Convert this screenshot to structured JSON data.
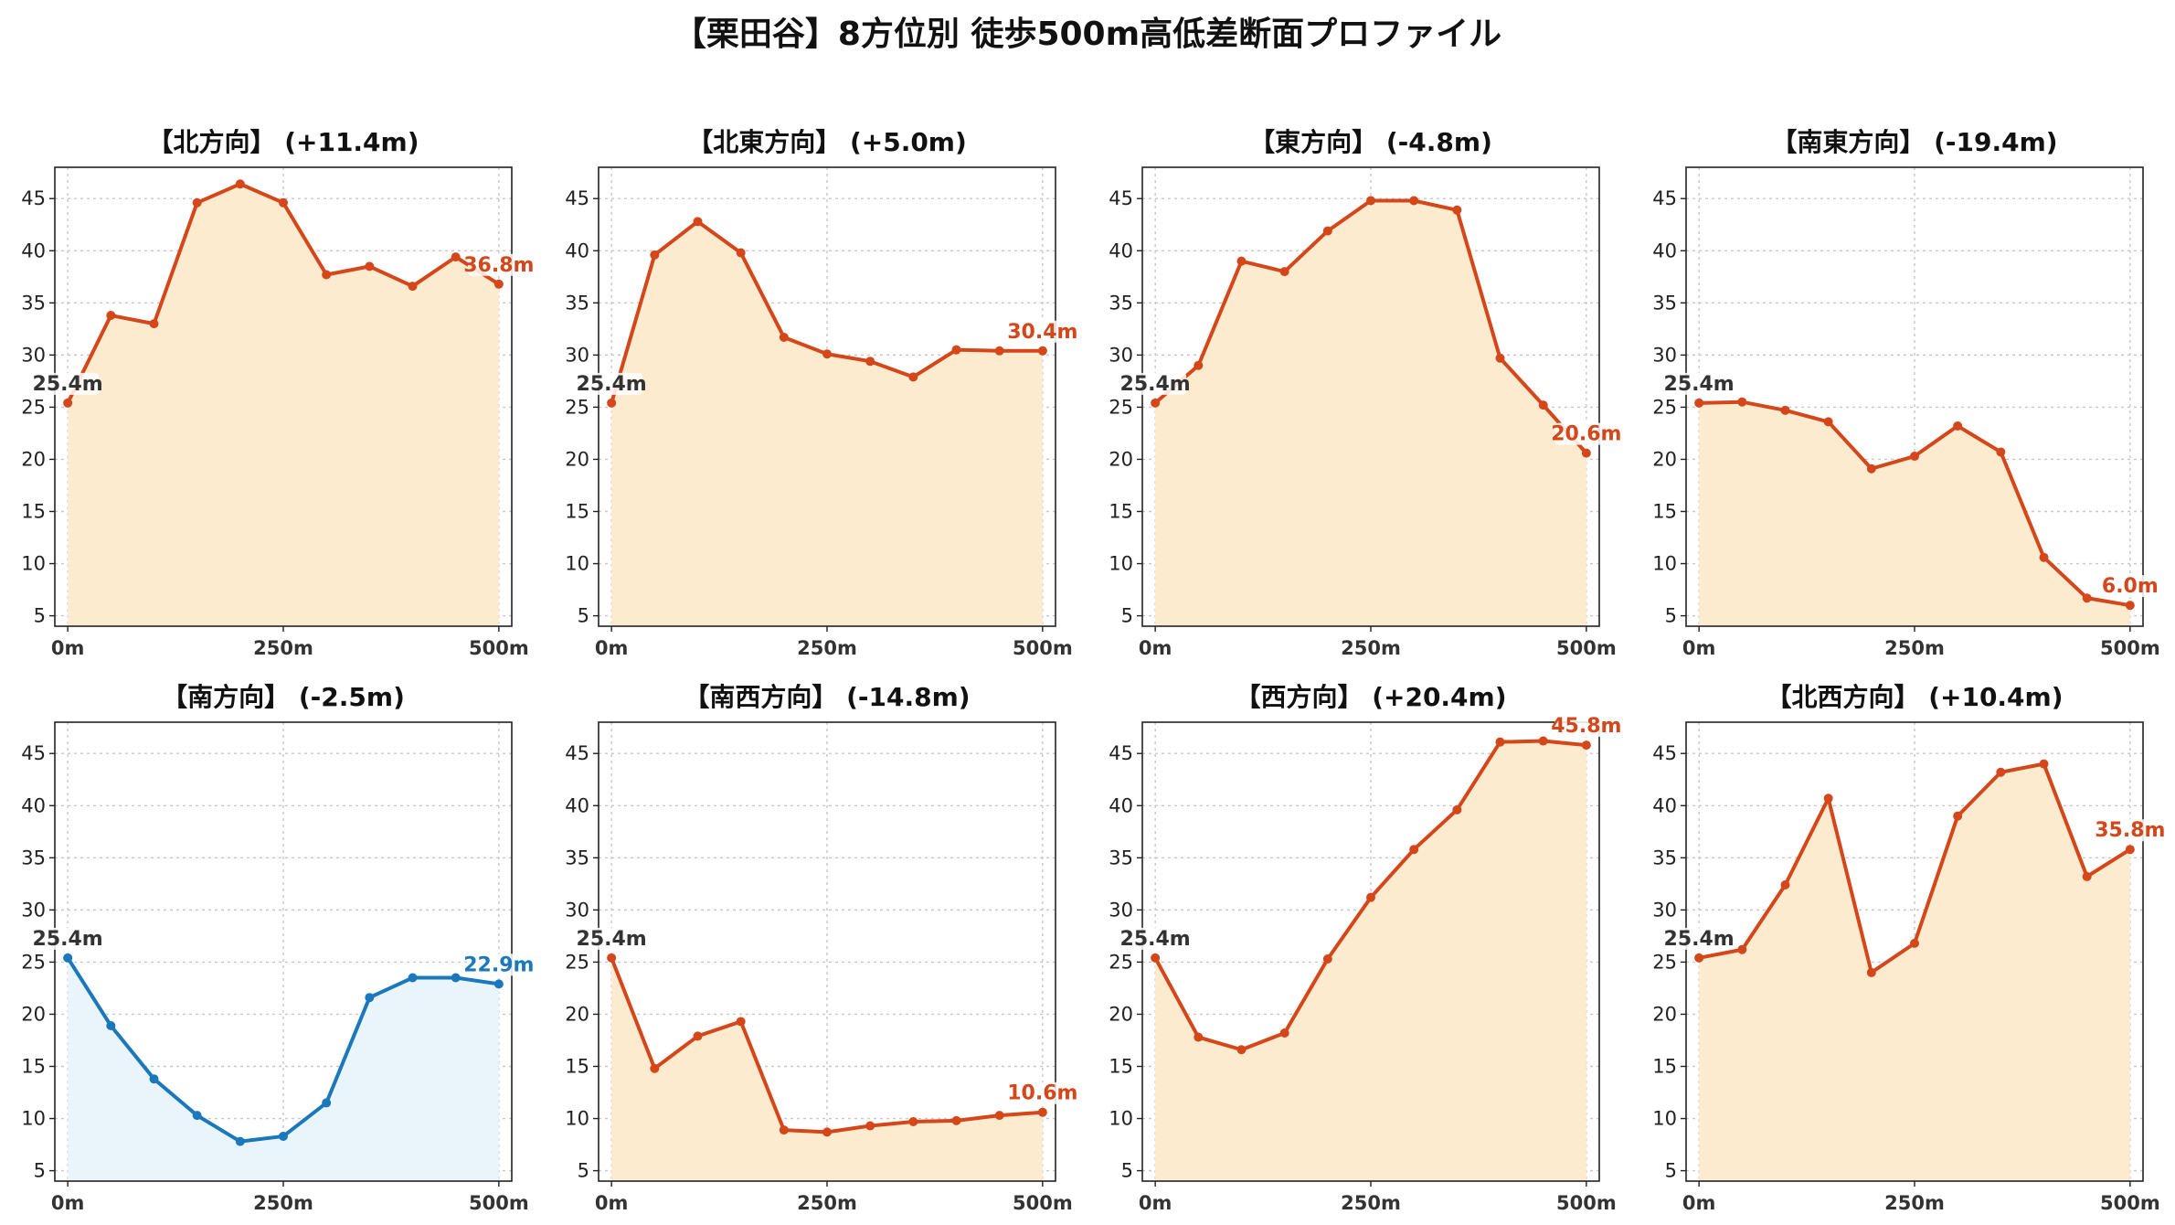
{
  "title": "【栗田谷】8方位別 徒歩500m高低差断面プロファイル",
  "colors": {
    "up_line": "#d4471a",
    "up_fill": "#fdebd0",
    "down_line": "#1a78bb",
    "down_fill": "#e9f5fb",
    "start_label": "#333333"
  },
  "chart_data": [
    {
      "type": "area",
      "title": "【北方向】 (+11.4m)",
      "x": [
        0,
        50,
        100,
        150,
        200,
        250,
        300,
        350,
        400,
        450,
        500
      ],
      "values": [
        25.4,
        33.8,
        33.0,
        44.6,
        46.4,
        44.6,
        37.7,
        38.5,
        36.6,
        39.4,
        36.8
      ],
      "start_label": "25.4m",
      "end_label": "36.8m",
      "series_color": "orange",
      "xticks": [
        "0m",
        "250m",
        "500m"
      ],
      "yticks": [
        5,
        10,
        15,
        20,
        25,
        30,
        35,
        40,
        45
      ],
      "ylim": [
        4,
        48
      ],
      "xlim": [
        -15,
        515
      ],
      "grid": true
    },
    {
      "type": "area",
      "title": "【北東方向】 (+5.0m)",
      "x": [
        0,
        50,
        100,
        150,
        200,
        250,
        300,
        350,
        400,
        450,
        500
      ],
      "values": [
        25.4,
        39.6,
        42.8,
        39.8,
        31.7,
        30.1,
        29.4,
        27.9,
        30.5,
        30.4,
        30.4
      ],
      "start_label": "25.4m",
      "end_label": "30.4m",
      "series_color": "orange",
      "xticks": [
        "0m",
        "250m",
        "500m"
      ],
      "yticks": [
        5,
        10,
        15,
        20,
        25,
        30,
        35,
        40,
        45
      ],
      "ylim": [
        4,
        48
      ],
      "xlim": [
        -15,
        515
      ],
      "grid": true
    },
    {
      "type": "area",
      "title": "【東方向】 (-4.8m)",
      "x": [
        0,
        50,
        100,
        150,
        200,
        250,
        300,
        350,
        400,
        450,
        500
      ],
      "values": [
        25.4,
        29.0,
        39.0,
        38.0,
        41.9,
        44.8,
        44.8,
        43.9,
        29.7,
        25.2,
        20.6
      ],
      "start_label": "25.4m",
      "end_label": "20.6m",
      "series_color": "orange",
      "xticks": [
        "0m",
        "250m",
        "500m"
      ],
      "yticks": [
        5,
        10,
        15,
        20,
        25,
        30,
        35,
        40,
        45
      ],
      "ylim": [
        4,
        48
      ],
      "xlim": [
        -15,
        515
      ],
      "grid": true
    },
    {
      "type": "area",
      "title": "【南東方向】 (-19.4m)",
      "x": [
        0,
        50,
        100,
        150,
        200,
        250,
        300,
        350,
        400,
        450,
        500
      ],
      "values": [
        25.4,
        25.5,
        24.7,
        23.6,
        19.1,
        20.3,
        23.2,
        20.7,
        10.6,
        6.7,
        6.0
      ],
      "start_label": "25.4m",
      "end_label": "6.0m",
      "series_color": "orange",
      "xticks": [
        "0m",
        "250m",
        "500m"
      ],
      "yticks": [
        5,
        10,
        15,
        20,
        25,
        30,
        35,
        40,
        45
      ],
      "ylim": [
        4,
        48
      ],
      "xlim": [
        -15,
        515
      ],
      "grid": true
    },
    {
      "type": "area",
      "title": "【南方向】 (-2.5m)",
      "x": [
        0,
        50,
        100,
        150,
        200,
        250,
        300,
        350,
        400,
        450,
        500
      ],
      "values": [
        25.4,
        18.9,
        13.8,
        10.3,
        7.8,
        8.3,
        11.5,
        21.6,
        23.5,
        23.5,
        22.9
      ],
      "start_label": "25.4m",
      "end_label": "22.9m",
      "series_color": "blue",
      "xticks": [
        "0m",
        "250m",
        "500m"
      ],
      "yticks": [
        5,
        10,
        15,
        20,
        25,
        30,
        35,
        40,
        45
      ],
      "ylim": [
        4,
        48
      ],
      "xlim": [
        -15,
        515
      ],
      "grid": true
    },
    {
      "type": "area",
      "title": "【南西方向】 (-14.8m)",
      "x": [
        0,
        50,
        100,
        150,
        200,
        250,
        300,
        350,
        400,
        450,
        500
      ],
      "values": [
        25.4,
        14.8,
        17.9,
        19.3,
        8.9,
        8.7,
        9.3,
        9.7,
        9.8,
        10.3,
        10.6
      ],
      "start_label": "25.4m",
      "end_label": "10.6m",
      "series_color": "orange",
      "xticks": [
        "0m",
        "250m",
        "500m"
      ],
      "yticks": [
        5,
        10,
        15,
        20,
        25,
        30,
        35,
        40,
        45
      ],
      "ylim": [
        4,
        48
      ],
      "xlim": [
        -15,
        515
      ],
      "grid": true
    },
    {
      "type": "area",
      "title": "【西方向】 (+20.4m)",
      "x": [
        0,
        50,
        100,
        150,
        200,
        250,
        300,
        350,
        400,
        450,
        500
      ],
      "values": [
        25.4,
        17.8,
        16.6,
        18.2,
        25.3,
        31.2,
        35.8,
        39.6,
        46.1,
        46.2,
        45.8
      ],
      "start_label": "25.4m",
      "end_label": "45.8m",
      "series_color": "orange",
      "xticks": [
        "0m",
        "250m",
        "500m"
      ],
      "yticks": [
        5,
        10,
        15,
        20,
        25,
        30,
        35,
        40,
        45
      ],
      "ylim": [
        4,
        48
      ],
      "xlim": [
        -15,
        515
      ],
      "grid": true
    },
    {
      "type": "area",
      "title": "【北西方向】 (+10.4m)",
      "x": [
        0,
        50,
        100,
        150,
        200,
        250,
        300,
        350,
        400,
        450,
        500
      ],
      "values": [
        25.4,
        26.2,
        32.4,
        40.7,
        24.0,
        26.8,
        39.0,
        43.2,
        44.0,
        33.2,
        35.8
      ],
      "start_label": "25.4m",
      "end_label": "35.8m",
      "series_color": "orange",
      "xticks": [
        "0m",
        "250m",
        "500m"
      ],
      "yticks": [
        5,
        10,
        15,
        20,
        25,
        30,
        35,
        40,
        45
      ],
      "ylim": [
        4,
        48
      ],
      "xlim": [
        -15,
        515
      ],
      "grid": true
    }
  ]
}
